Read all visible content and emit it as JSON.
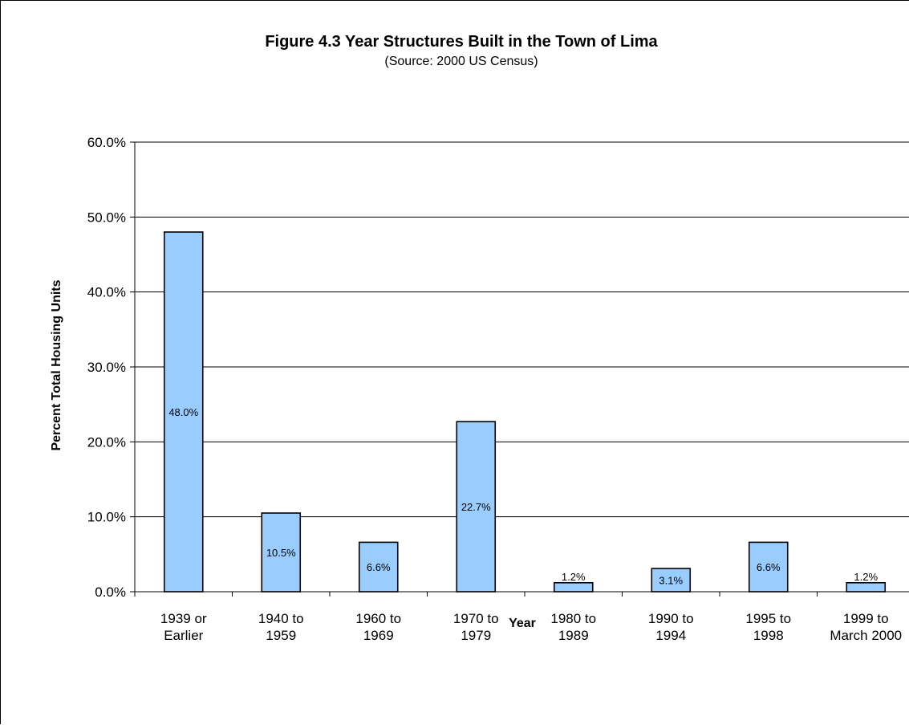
{
  "chart_data": {
    "type": "bar",
    "title": "Figure 4.3 Year Structures Built in the Town of Lima",
    "subtitle": "(Source: 2000 US Census)",
    "xlabel": "Year",
    "ylabel": "Percent Total Housing Units",
    "ylim": [
      0,
      60
    ],
    "yticks": [
      "0.0%",
      "10.0%",
      "20.0%",
      "30.0%",
      "40.0%",
      "50.0%",
      "60.0%"
    ],
    "grid": true,
    "legend": "none",
    "bar_color": "#99ccff",
    "categories": [
      [
        "1939 or",
        "Earlier"
      ],
      [
        "1940 to",
        "1959"
      ],
      [
        "1960 to",
        "1969"
      ],
      [
        "1970 to",
        "1979"
      ],
      [
        "1980 to",
        "1989"
      ],
      [
        "1990 to",
        "1994"
      ],
      [
        "1995 to",
        "1998"
      ],
      [
        "1999 to",
        "March 2000"
      ]
    ],
    "values": [
      48.0,
      10.5,
      6.6,
      22.7,
      1.2,
      3.1,
      6.6,
      1.2
    ],
    "data_labels": [
      "48.0%",
      "10.5%",
      "6.6%",
      "22.7%",
      "1.2%",
      "3.1%",
      "6.6%",
      "1.2%"
    ]
  }
}
